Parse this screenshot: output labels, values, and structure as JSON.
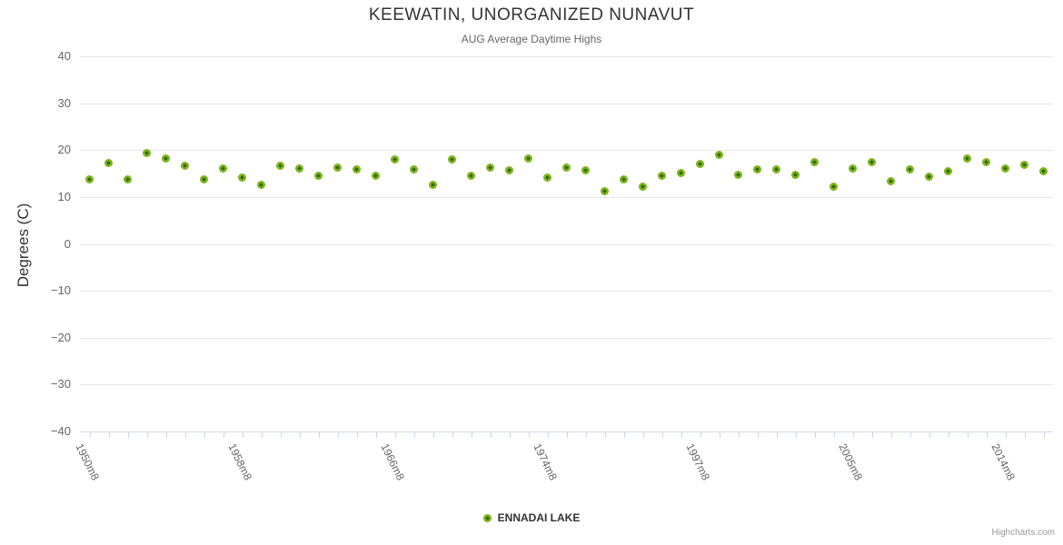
{
  "header": {
    "title": "KEEWATIN, UNORGANIZED NUNAVUT",
    "subtitle": "AUG Average Daytime Highs"
  },
  "y_axis": {
    "title": "Degrees (C)",
    "tick_labels": [
      "40",
      "30",
      "20",
      "10",
      "0",
      "−10",
      "−20",
      "−30",
      "−40"
    ]
  },
  "x_axis": {
    "tick_labels": [
      {
        "index": 0,
        "label": "1950m8"
      },
      {
        "index": 8,
        "label": "1958m8"
      },
      {
        "index": 16,
        "label": "1966m8"
      },
      {
        "index": 24,
        "label": "1974m8"
      },
      {
        "index": 32,
        "label": "1997m8"
      },
      {
        "index": 40,
        "label": "2005m8"
      },
      {
        "index": 48,
        "label": "2014m8"
      }
    ]
  },
  "legend": {
    "label": "ENNADAI LAKE"
  },
  "credit": "Highcharts.com",
  "colors": {
    "marker_outer": "#7db31c",
    "marker_core": "#2f6b00",
    "grid": "#e6e6e6",
    "axis_line": "#ccd6eb",
    "title": "#333333",
    "subtitle": "#666666",
    "axis_label": "#666666"
  },
  "chart_data": {
    "type": "scatter",
    "title": "KEEWATIN, UNORGANIZED NUNAVUT",
    "subtitle": "AUG Average Daytime Highs",
    "ylabel": "Degrees (C)",
    "ylim": [
      -40,
      40
    ],
    "y_tick_interval": 10,
    "grid": "horizontal-only",
    "legend_position": "bottom-center",
    "n_points": 51,
    "x_tick_labels_shown": [
      {
        "index": 0,
        "label": "1950m8"
      },
      {
        "index": 8,
        "label": "1958m8"
      },
      {
        "index": 16,
        "label": "1966m8"
      },
      {
        "index": 24,
        "label": "1974m8"
      },
      {
        "index": 32,
        "label": "1997m8"
      },
      {
        "index": 40,
        "label": "2005m8"
      },
      {
        "index": 48,
        "label": "2014m8"
      }
    ],
    "series": [
      {
        "name": "ENNADAI LAKE",
        "values": [
          13.7,
          17.2,
          13.7,
          19.4,
          18.2,
          16.6,
          13.8,
          16.0,
          14.2,
          12.6,
          16.7,
          16.1,
          14.5,
          16.2,
          15.8,
          14.5,
          18.1,
          15.8,
          12.6,
          18.0,
          14.5,
          16.2,
          15.6,
          18.3,
          14.2,
          16.2,
          15.7,
          11.3,
          13.7,
          12.2,
          14.6,
          15.2,
          17.0,
          19.0,
          14.7,
          15.8,
          15.8,
          14.7,
          17.5,
          12.3,
          16.0,
          17.4,
          13.4,
          15.8,
          14.3,
          15.4,
          18.2,
          17.5,
          16.1,
          16.9,
          15.4
        ]
      }
    ]
  }
}
